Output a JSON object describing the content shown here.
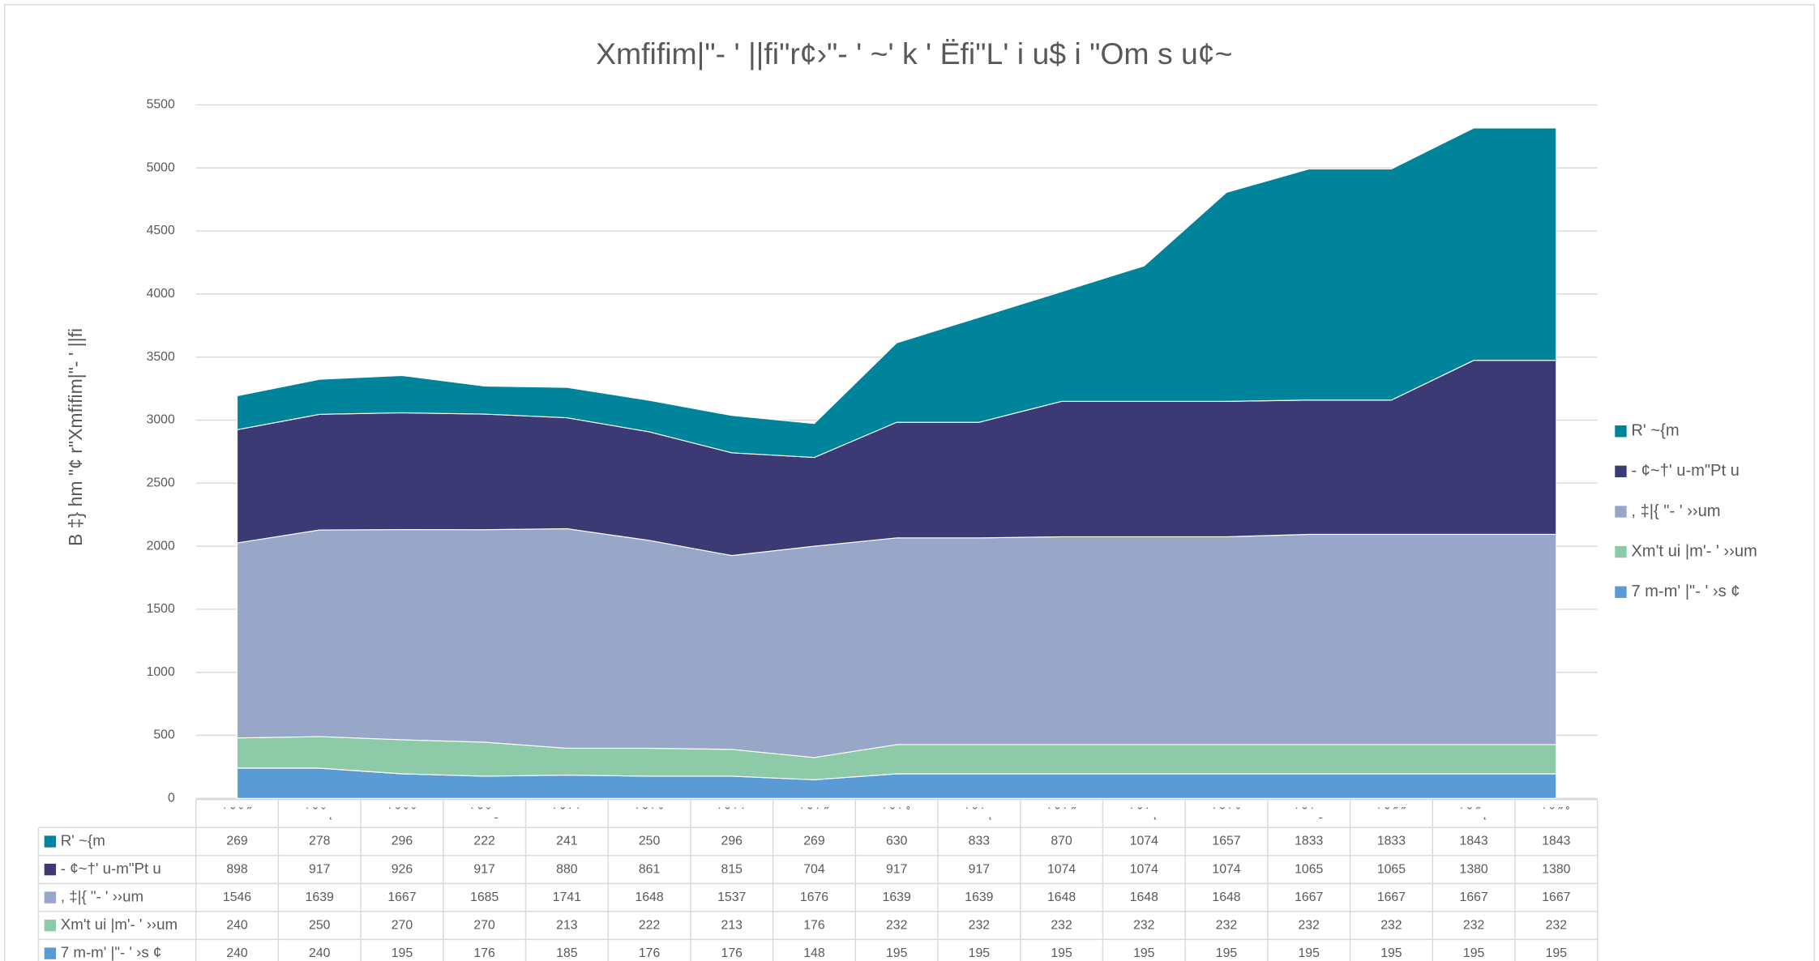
{
  "chart_data": {
    "type": "stacked_area",
    "title": "Xmfifim|\"- ' ||fi\"r¢›\"- ' ~' k ' Ëfi\"L' i u$ i \"Om s u¢~",
    "y_label": "B ‡} hm \"¢ r\"Xmfifim|\"- ' ||fi",
    "categories": [
      "˙ ˘ ˇ ˝",
      "˙ ˘ ˇ ˛",
      "˙ ˘ ˇ ˇ",
      "˙ ˘ ˇ ˍ",
      "˙ ˘ ˙ ˙",
      "˙ ˘ ˙ ˇ",
      "˙ ˘ ˙ ˙ ",
      "˙ ˘ ˙ ˝",
      "˙ ˘ ˙ ˚",
      "˙ ˘ ˙ ˛",
      "˙ ˘ ˙ ˝ ",
      "˙ ˘ ˙ ˛ ",
      "˙ ˘ ˙ ˇ ",
      "˙ ˘ ˙ ˍ",
      "˙ ˘ ˝ ˝",
      "˙ ˘ ˝ ˛",
      "˙ ˘ ˝ ˚"
    ],
    "series": [
      {
        "name": "7 m-m' |\"- ' ›s ¢",
        "color": "#5b9bd5",
        "values": [
          240,
          240,
          195,
          176,
          185,
          176,
          176,
          148,
          195,
          195,
          195,
          195,
          195,
          195,
          195,
          195,
          195
        ]
      },
      {
        "name": "Xm't ui |m'- ' ››um",
        "color": "#8ccaa8",
        "values": [
          240,
          250,
          270,
          270,
          213,
          222,
          213,
          176,
          232,
          232,
          232,
          232,
          232,
          232,
          232,
          232,
          232
        ]
      },
      {
        "name": ", ‡|{ \"- ' ››um",
        "color": "#98a6c8",
        "values": [
          1546,
          1639,
          1667,
          1685,
          1741,
          1648,
          1537,
          1676,
          1639,
          1639,
          1648,
          1648,
          1648,
          1667,
          1667,
          1667,
          1667
        ]
      },
      {
        "name": "- ¢~†' u-m\"Pt u",
        "color": "#3c3a74",
        "values": [
          898,
          917,
          926,
          917,
          880,
          861,
          815,
          704,
          917,
          917,
          1074,
          1074,
          1074,
          1065,
          1065,
          1380,
          1380
        ]
      },
      {
        "name": "R' ~{m",
        "color": "#00849c",
        "values": [
          269,
          278,
          296,
          222,
          241,
          250,
          296,
          269,
          630,
          833,
          870,
          1074,
          1657,
          1833,
          1833,
          1843,
          1843
        ]
      }
    ],
    "ylim": [
      0,
      5500
    ],
    "yticks": [
      0,
      500,
      1000,
      1500,
      2000,
      2500,
      3000,
      3500,
      4000,
      4500,
      5000,
      5500
    ],
    "grid": true,
    "legend": "right"
  }
}
